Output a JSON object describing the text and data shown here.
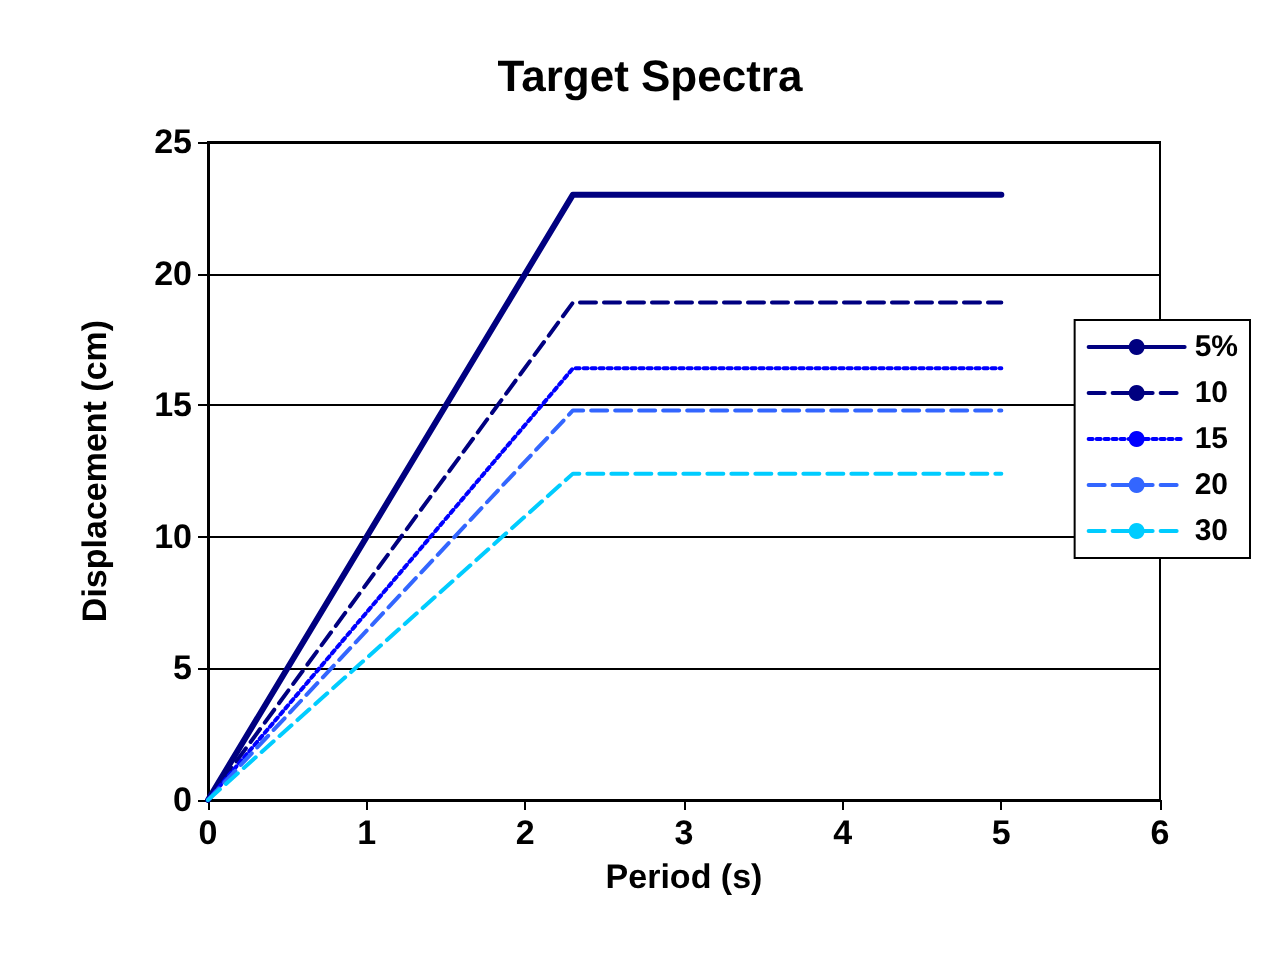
{
  "chart_data": {
    "type": "line",
    "title": "Target Spectra",
    "xlabel": "Period (s)",
    "ylabel": "Displacement (cm)",
    "x": [
      0,
      2.3,
      5
    ],
    "series": [
      {
        "name": "5%",
        "color": "#000080",
        "values": [
          0,
          23,
          23
        ],
        "line_style": "solid"
      },
      {
        "name": "10",
        "color": "#000080",
        "values": [
          0,
          18.9,
          18.9
        ],
        "line_style": "dashed"
      },
      {
        "name": "15",
        "color": "#0000ff",
        "values": [
          0,
          16.4,
          16.4
        ],
        "line_style": "dotted"
      },
      {
        "name": "20",
        "color": "#3366ff",
        "values": [
          0,
          14.8,
          14.8
        ],
        "line_style": "dashed"
      },
      {
        "name": "30",
        "color": "#00ccff",
        "values": [
          0,
          12.4,
          12.4
        ],
        "line_style": "dashed"
      }
    ],
    "xlim": [
      0,
      6
    ],
    "xticks": [
      0,
      1,
      2,
      3,
      4,
      5,
      6
    ],
    "ylim": [
      0,
      25
    ],
    "yticks": [
      0,
      5,
      10,
      15,
      20,
      25
    ],
    "grid": "y",
    "legend": "right",
    "marker": "none"
  }
}
